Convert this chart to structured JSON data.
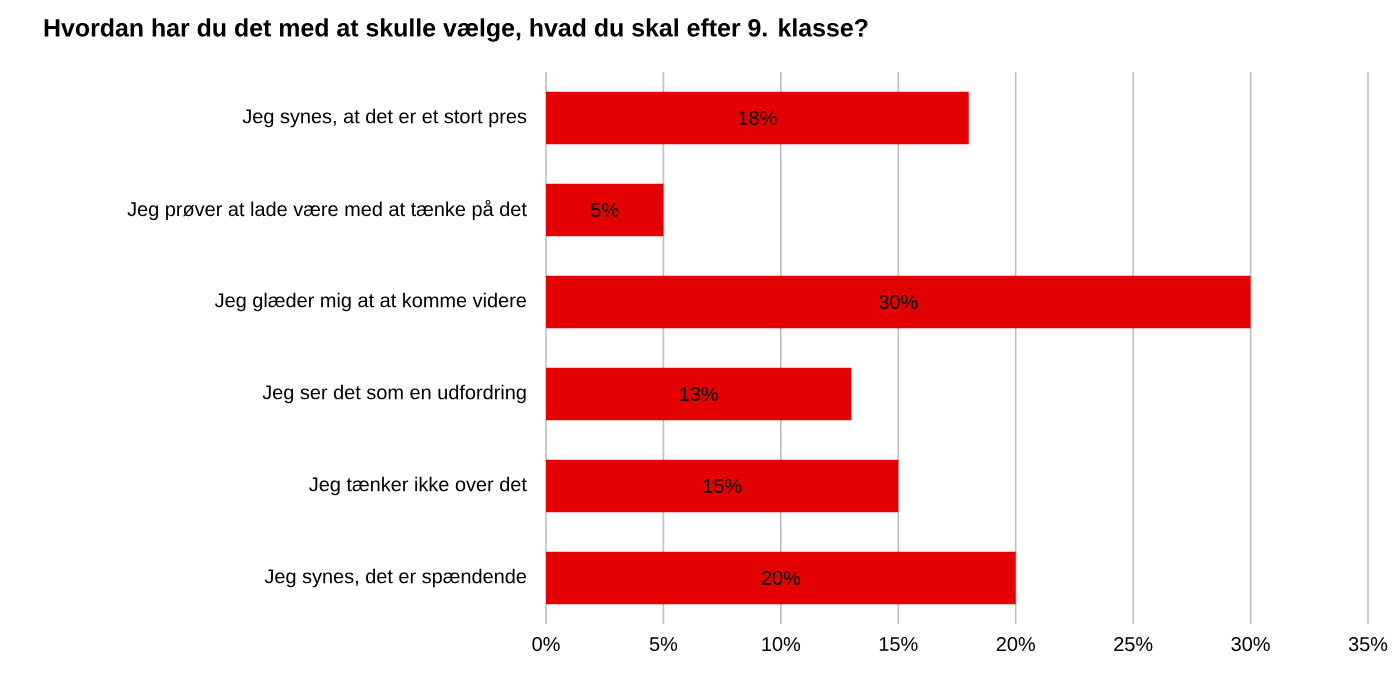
{
  "chart_data": {
    "type": "bar",
    "orientation": "horizontal",
    "title": "Hvordan har du det med at skulle vælge, hvad du skal efter 9. klasse?",
    "categories": [
      "Jeg synes, at det er et stort pres",
      "Jeg prøver at lade være med at tænke på det",
      "Jeg glæder mig at at komme videre",
      "Jeg ser det som en udfordring",
      "Jeg tænker ikke over det",
      "Jeg synes, det er spændende"
    ],
    "values": [
      18,
      5,
      30,
      13,
      15,
      20
    ],
    "value_labels": [
      "18%",
      "5%",
      "30%",
      "13%",
      "15%",
      "20%"
    ],
    "color": "#e30000",
    "xlim": [
      0,
      35
    ],
    "xticks": [
      {
        "value": 0,
        "label": "0%"
      },
      {
        "value": 5,
        "label": "5%"
      },
      {
        "value": 10,
        "label": "10%"
      },
      {
        "value": 15,
        "label": "15%"
      },
      {
        "value": 20,
        "label": "20%"
      },
      {
        "value": 25,
        "label": "25%"
      },
      {
        "value": 30,
        "label": "30%"
      },
      {
        "value": 35,
        "label": "35%"
      }
    ],
    "grid": "x"
  }
}
